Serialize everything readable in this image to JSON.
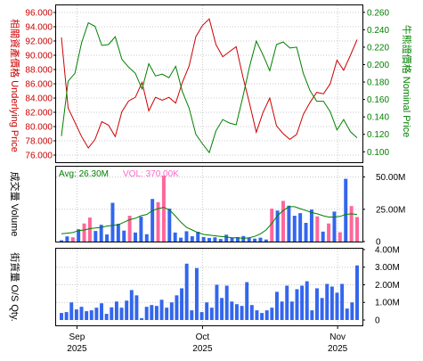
{
  "colors": {
    "underlying": "#cc0000",
    "nominal": "#008000",
    "volume_bar": "#3366ee",
    "volume_bar_hi": "#ff6699",
    "avg_line": "#008000",
    "os_bar": "#3366ee",
    "frame": "#000000",
    "grid": "#c8c8c8",
    "vol_label": "#ff66cc"
  },
  "chart_data": [
    {
      "type": "line",
      "title": "",
      "ylabel_left": "相關資產價格 Underlying Price",
      "ylabel_right": "牛熊證價格 Nominal Price",
      "left_ticks": [
        "76.000",
        "78.000",
        "80.000",
        "82.000",
        "84.000",
        "86.000",
        "88.000",
        "90.000",
        "92.000",
        "94.000",
        "96.000"
      ],
      "right_ticks": [
        "0.100",
        "0.120",
        "0.140",
        "0.160",
        "0.180",
        "0.200",
        "0.220",
        "0.240",
        "0.260"
      ],
      "ylim_left": [
        75,
        97
      ],
      "ylim_right": [
        0.088,
        0.268
      ],
      "grid": true,
      "series": [
        {
          "axis": "left",
          "color": "#cc0000",
          "values": [
            92.5,
            82.6,
            80.6,
            78.6,
            77.0,
            78.2,
            80.7,
            80.2,
            78.6,
            82.1,
            83.6,
            84.1,
            86.2,
            82.2,
            84.1,
            83.7,
            84.1,
            83.3,
            86.2,
            88.5,
            92.6,
            94.2,
            95.1,
            91.5,
            89.8,
            90.5,
            91.2,
            87.0,
            83.2,
            79.2,
            82.0,
            84.0,
            80.1,
            79.0,
            78.2,
            78.9,
            81.7,
            83.4,
            84.8,
            84.6,
            86.0,
            89.3,
            87.9,
            90.0,
            92.2
          ]
        },
        {
          "axis": "right",
          "color": "#008000",
          "values": [
            0.118,
            0.181,
            0.19,
            0.225,
            0.248,
            0.244,
            0.222,
            0.223,
            0.232,
            0.206,
            0.197,
            0.19,
            0.172,
            0.201,
            0.187,
            0.189,
            0.185,
            0.198,
            0.169,
            0.15,
            0.12,
            0.109,
            0.099,
            0.124,
            0.137,
            0.133,
            0.131,
            0.163,
            0.198,
            0.227,
            0.211,
            0.193,
            0.223,
            0.226,
            0.219,
            0.22,
            0.19,
            0.17,
            0.158,
            0.158,
            0.146,
            0.125,
            0.137,
            0.123,
            0.116
          ]
        }
      ]
    },
    {
      "type": "bar",
      "ylabel": "成交量 Volume",
      "avg_label": "Avg: 26.30M",
      "vol_label": "VOL: 370.00K",
      "ticks": [
        "0",
        "25.00M",
        "50.00M"
      ],
      "ylim": [
        0,
        58
      ],
      "grid": true,
      "values": [
        1.0,
        4.0,
        3.3,
        9.5,
        14.0,
        18.6,
        8.2,
        13.0,
        5.5,
        30.0,
        13.8,
        8.5,
        20.0,
        7.0,
        19.2,
        5.7,
        33.0,
        30.5,
        51.0,
        25.5,
        7.0,
        3.0,
        8.0,
        4.1,
        7.6,
        3.5,
        2.8,
        3.3,
        2.0,
        5.3,
        2.8,
        3.5,
        4.3,
        3.0,
        2.3,
        3.0,
        1.6,
        25.5,
        24.0,
        31.5,
        27.8,
        20.0,
        22.0,
        14.5,
        24.8,
        19.5,
        7.7,
        14.0,
        23.2,
        7.2,
        48.6,
        27.5,
        19.0
      ],
      "highlight": [
        0,
        0,
        1,
        0,
        1,
        1,
        0,
        0,
        0,
        0,
        0,
        0,
        1,
        0,
        0,
        0,
        0,
        1,
        1,
        0,
        0,
        0,
        0,
        0,
        0,
        0,
        0,
        0,
        0,
        0,
        0,
        0,
        0,
        0,
        0,
        0,
        0,
        1,
        0,
        1,
        0,
        0,
        0,
        0,
        0,
        1,
        0,
        1,
        0,
        1,
        0,
        1,
        1
      ],
      "avg_values": [
        6,
        6.5,
        7,
        8.5,
        9,
        10,
        10.5,
        11,
        12,
        12.5,
        13,
        15,
        17,
        18,
        20,
        21,
        24,
        25.5,
        26.5,
        24.5,
        20,
        15,
        11,
        9,
        7,
        5.5,
        5,
        4.5,
        4,
        3.5,
        3,
        3,
        2.5,
        3,
        4,
        6,
        9,
        14,
        20,
        24,
        27,
        27,
        25.5,
        24,
        22.5,
        21.5,
        20,
        19,
        19,
        19.5,
        21,
        21.5,
        21
      ]
    },
    {
      "type": "bar",
      "ylabel": "街貨量 O/S Qty.",
      "ticks": [
        "0",
        "1.00M",
        "2.00M",
        "3.00M",
        "4.00M"
      ],
      "ylim": [
        0,
        4.05
      ],
      "grid": true,
      "values": [
        0.4,
        0.45,
        1.0,
        0.6,
        0.75,
        0.5,
        0.55,
        0.7,
        0.95,
        0.35,
        0.72,
        1.05,
        0.7,
        1.1,
        1.7,
        1.4,
        0.1,
        0.75,
        0.85,
        0.8,
        1.15,
        0.7,
        1.0,
        1.4,
        1.8,
        3.2,
        0.55,
        2.95,
        0.45,
        1.0,
        0.7,
        2.0,
        1.25,
        1.95,
        1.05,
        0.9,
        0.8,
        2.15,
        0.85,
        0.55,
        0.4,
        0.55,
        0.7,
        1.6,
        1.05,
        1.95,
        1.05,
        1.75,
        1.95,
        2.2,
        0.55,
        1.8,
        1.25,
        2.05,
        1.9,
        1.55,
        2.05,
        0.65,
        1.0,
        3.1
      ]
    }
  ],
  "x_axis": {
    "labels": [
      {
        "month": "Sep",
        "year": "2025",
        "pos": 0.068
      },
      {
        "month": "Oct",
        "year": "2025",
        "pos": 0.478
      },
      {
        "month": "Nov",
        "year": "2025",
        "pos": 0.919
      }
    ]
  }
}
